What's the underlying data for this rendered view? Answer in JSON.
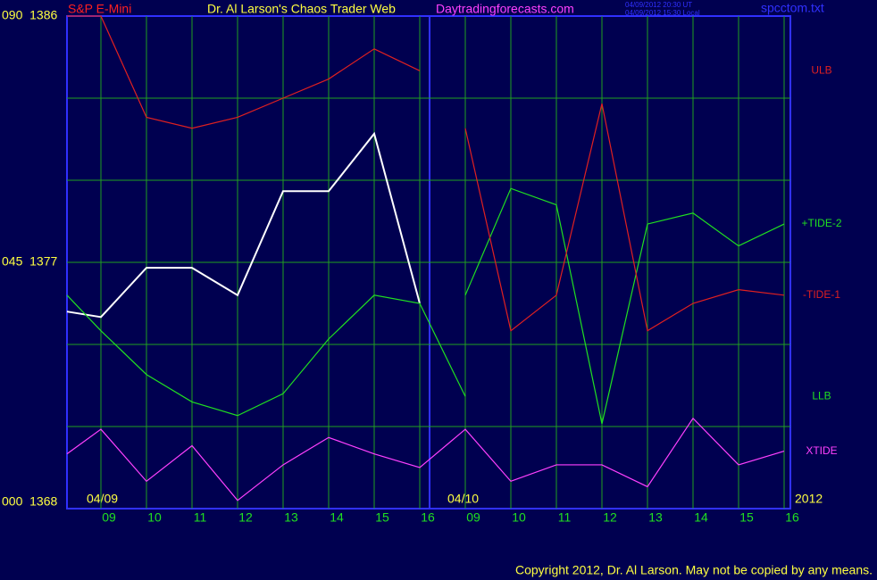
{
  "chart_data": {
    "type": "line",
    "instrument": "S&P E-Mini",
    "title": "Dr. Al Larson's Chaos Trader Web",
    "site": "Daytradingforecasts.com",
    "timestamp_ut": "04/09/2012 20:30 UT",
    "timestamp_local": "04/09/2012 15:30 Local",
    "file": "spcctom.txt",
    "date_labels": [
      "04/09",
      "04/10",
      "2012"
    ],
    "copyright": "Copyright 2012, Dr. Al Larson. May not be copied by any means.",
    "categories": [
      null,
      "09",
      "10",
      "11",
      "12",
      "13",
      "14",
      "15",
      "16",
      "09",
      "10",
      "11",
      "12",
      "13",
      "14",
      "15",
      "16"
    ],
    "ylim": [
      1368,
      1386
    ],
    "yticks": [
      {
        "value": 1368,
        "label": "000  1368"
      },
      {
        "value": 1371,
        "label": null
      },
      {
        "value": 1374,
        "label": null
      },
      {
        "value": 1377,
        "label": "045  1377"
      },
      {
        "value": 1380,
        "label": null
      },
      {
        "value": 1383,
        "label": null
      },
      {
        "value": 1386,
        "label": "090  1386"
      }
    ],
    "grid": true,
    "series": [
      {
        "color": "#ffffff",
        "values": [
          1375.2,
          1375.0,
          1376.8,
          1376.8,
          1375.8,
          1379.6,
          1379.6,
          1381.7,
          1375.5,
          null,
          null,
          null,
          null,
          null,
          null,
          null,
          null
        ]
      },
      {
        "name": "ULB",
        "color": "#e02020",
        "values": [
          1386,
          1386,
          1382.3,
          1381.9,
          1382.3,
          1383.0,
          1383.7,
          1384.8,
          1384.0,
          null,
          null,
          null,
          null,
          null,
          null,
          null,
          null
        ]
      },
      {
        "name": "+TIDE-2",
        "color": "#20e020",
        "values": [
          null,
          null,
          null,
          null,
          null,
          null,
          null,
          null,
          null,
          1375.8,
          1379.7,
          1379.1,
          1371.1,
          1378.4,
          1378.8,
          1377.6,
          1378.4
        ]
      },
      {
        "name": "-TIDE-1",
        "color": "#e02020",
        "values": [
          null,
          null,
          null,
          null,
          null,
          null,
          null,
          null,
          null,
          1381.9,
          1374.5,
          1375.8,
          1382.8,
          1374.5,
          1375.5,
          1376.0,
          1375.8
        ]
      },
      {
        "name": "LLB",
        "color": "#20e020",
        "values": [
          1375.8,
          1374.5,
          1372.9,
          1371.9,
          1371.4,
          1372.2,
          1374.2,
          1375.8,
          1375.5,
          1372.1,
          null,
          null,
          null,
          null,
          null,
          null,
          null
        ]
      },
      {
        "name": "XTIDE",
        "color": "#ff40ff",
        "values": [
          1370.0,
          1370.9,
          1369.0,
          1370.3,
          1368.3,
          1369.6,
          1370.6,
          1370.0,
          1369.5,
          1370.9,
          1369.0,
          1369.6,
          1369.6,
          1368.8,
          1371.3,
          1369.6,
          1370.1
        ]
      }
    ]
  }
}
